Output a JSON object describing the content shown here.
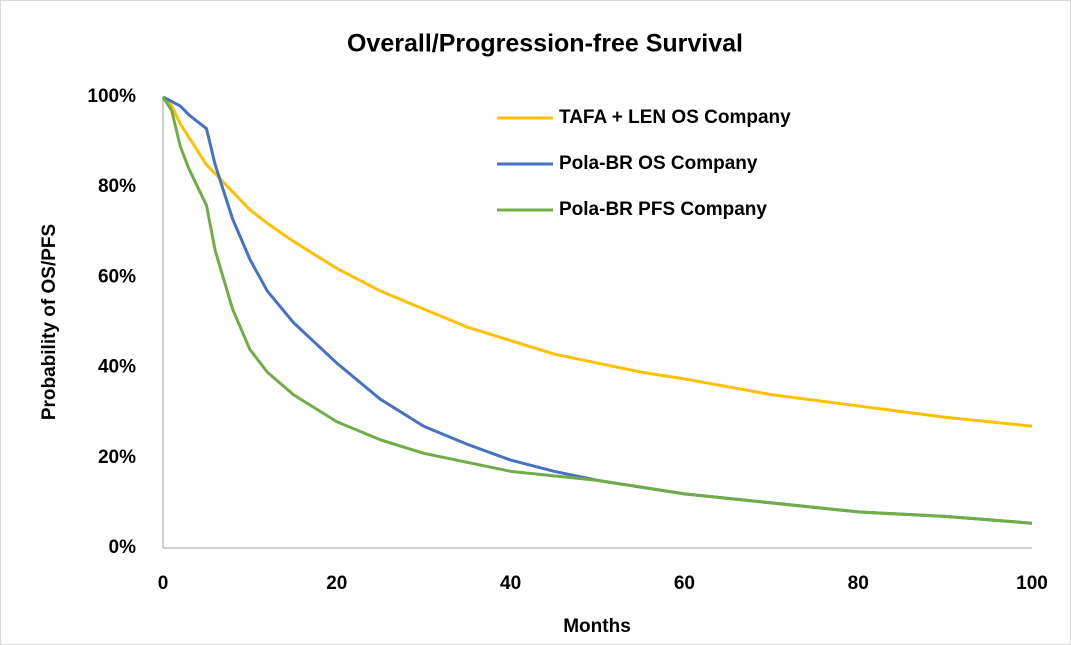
{
  "chart_data": {
    "type": "line",
    "title": "Overall/Progression-free Survival",
    "x_label": "Months",
    "y_label": "Probability of OS/PFS",
    "x": [
      0,
      1,
      2,
      3,
      4,
      5,
      6,
      8,
      10,
      12,
      15,
      20,
      25,
      30,
      35,
      40,
      45,
      50,
      55,
      60,
      70,
      80,
      90,
      100
    ],
    "series": [
      {
        "name": "TAFA + LEN OS Company",
        "color": "#FFC000",
        "values": [
          100,
          98,
          94,
          91,
          88,
          85,
          83,
          79,
          75,
          72,
          68,
          62,
          57,
          53,
          49,
          46,
          43,
          41,
          39,
          37.5,
          34,
          31.5,
          29,
          27
        ]
      },
      {
        "name": "Pola-BR OS Company",
        "color": "#4472C4",
        "values": [
          100,
          99,
          98,
          96,
          94.5,
          93,
          85,
          73,
          64,
          57,
          50,
          41,
          33,
          27,
          23,
          19.5,
          17,
          15,
          13.5,
          12,
          10,
          8,
          7,
          5.5
        ]
      },
      {
        "name": "Pola-BR PFS Company",
        "color": "#70AD47",
        "values": [
          100,
          97,
          89,
          84,
          80,
          76,
          66,
          53,
          44,
          39,
          34,
          28,
          24,
          21,
          19,
          17,
          16,
          15,
          13.5,
          12,
          10,
          8,
          7,
          5.5
        ]
      }
    ],
    "xlim": [
      0,
      100
    ],
    "xticks": [
      0,
      20,
      40,
      60,
      80,
      100
    ],
    "ylim": [
      0,
      100
    ],
    "yticks": [
      {
        "value": 0,
        "label": "0%"
      },
      {
        "value": 20,
        "label": "20%"
      },
      {
        "value": 40,
        "label": "40%"
      },
      {
        "value": 60,
        "label": "60%"
      },
      {
        "value": 80,
        "label": "80%"
      },
      {
        "value": 100,
        "label": "100%"
      }
    ],
    "grid": false,
    "legend": "upper right"
  }
}
